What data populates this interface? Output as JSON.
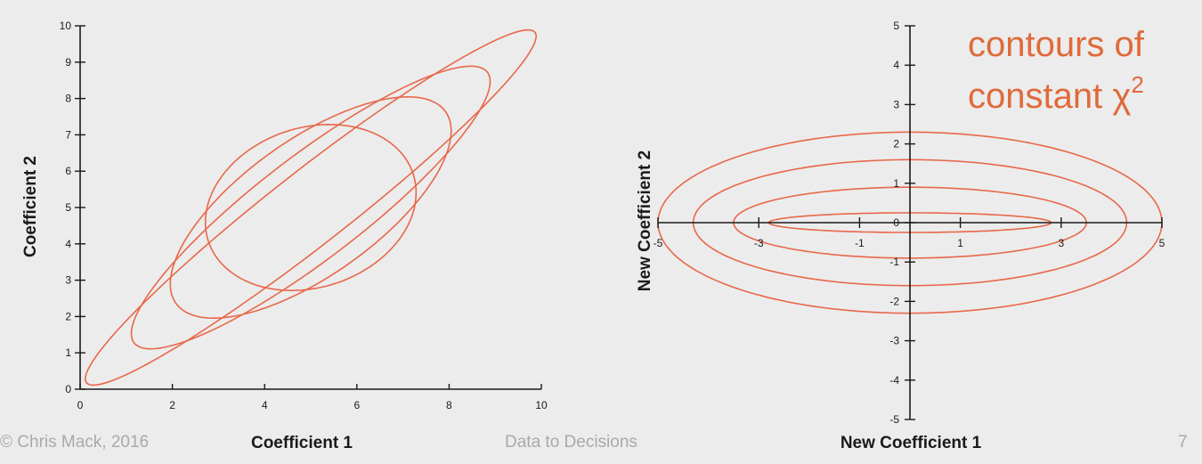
{
  "slide": {
    "footer_left": "© Chris Mack, 2016",
    "footer_center": "Data to Decisions",
    "page_number": "7",
    "annotation_line1": "contours of",
    "annotation_line2": "constant χ",
    "annotation_superscript": "2"
  },
  "colors": {
    "contour": "#e8684a",
    "annotation": "#e06a3a",
    "axis": "#1a1a1a",
    "footer": "#a9a9a9",
    "background": "#ececec"
  },
  "chart_data": [
    {
      "type": "line",
      "title": "",
      "xlabel": "Coefficient 1",
      "ylabel": "Coefficient 2",
      "xlim": [
        0,
        10
      ],
      "ylim": [
        0,
        10
      ],
      "xticks": [
        0,
        2,
        4,
        6,
        8,
        10
      ],
      "yticks": [
        0,
        1,
        2,
        3,
        4,
        5,
        6,
        7,
        8,
        9,
        10
      ],
      "grid": false,
      "legend": "none",
      "center": [
        5,
        5
      ],
      "rotation_deg": 45,
      "series": [
        {
          "semi_major": 6.85,
          "semi_minor": 0.92
        },
        {
          "semi_major": 5.35,
          "semi_minor": 1.28
        },
        {
          "semi_major": 3.96,
          "semi_minor": 1.69
        },
        {
          "semi_major": 2.48,
          "semi_minor": 2.07
        }
      ]
    },
    {
      "type": "line",
      "title": "",
      "xlabel": "New Coefficient 1",
      "ylabel": "New Coefficient 2",
      "xlim": [
        -5,
        5
      ],
      "ylim": [
        -5,
        5
      ],
      "xticks": [
        -5,
        -3,
        -1,
        1,
        3,
        5
      ],
      "yticks": [
        -5,
        -4,
        -3,
        -2,
        -1,
        0,
        1,
        2,
        3,
        4,
        5
      ],
      "grid": false,
      "legend": "none",
      "center": [
        0,
        0
      ],
      "rotation_deg": 0,
      "series": [
        {
          "semi_major": 5.0,
          "semi_minor": 2.3
        },
        {
          "semi_major": 4.3,
          "semi_minor": 1.6
        },
        {
          "semi_major": 3.5,
          "semi_minor": 0.9
        },
        {
          "semi_major": 2.8,
          "semi_minor": 0.25
        }
      ]
    }
  ]
}
